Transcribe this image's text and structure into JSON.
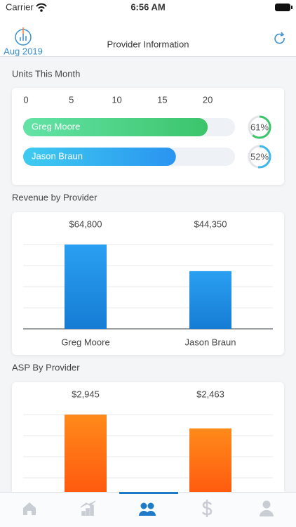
{
  "status": {
    "carrier": "Carrier",
    "time": "6:56 AM"
  },
  "header": {
    "date": "Aug 2019",
    "title": "Provider Information"
  },
  "chart_data": [
    {
      "type": "hbar",
      "title": "Units This Month",
      "categories": [
        "Greg Moore",
        "Jason Braun"
      ],
      "values": [
        20,
        16.5
      ],
      "xlim": [
        0,
        23
      ],
      "xticks": [
        0,
        5,
        10,
        15,
        20
      ],
      "percent": [
        61,
        52
      ],
      "percent_labels": [
        "61%",
        "52%"
      ],
      "colors": [
        "#3cc46b",
        "#2a9cf0"
      ],
      "ring_colors": [
        "#3cc46b",
        "#3db8e8"
      ]
    },
    {
      "type": "bar",
      "title": "Revenue by Provider",
      "categories": [
        "Greg Moore",
        "Jason Braun"
      ],
      "values": [
        64800,
        44350
      ],
      "value_labels": [
        "$64,800",
        "$44,350"
      ],
      "ylim": [
        0,
        64800
      ],
      "yticks": [
        0,
        16200,
        32400,
        48600,
        64800
      ],
      "grid": true,
      "color": "#1e88e5"
    },
    {
      "type": "bar",
      "title": "ASP By Provider",
      "values": [
        2945,
        2463
      ],
      "value_labels": [
        "$2,945",
        "$2,463"
      ],
      "ylim": [
        0,
        2945
      ],
      "yticks": [
        0,
        736.25,
        1472.5,
        2208.75,
        2945
      ],
      "grid": true,
      "color": "#ff6d12"
    }
  ]
}
